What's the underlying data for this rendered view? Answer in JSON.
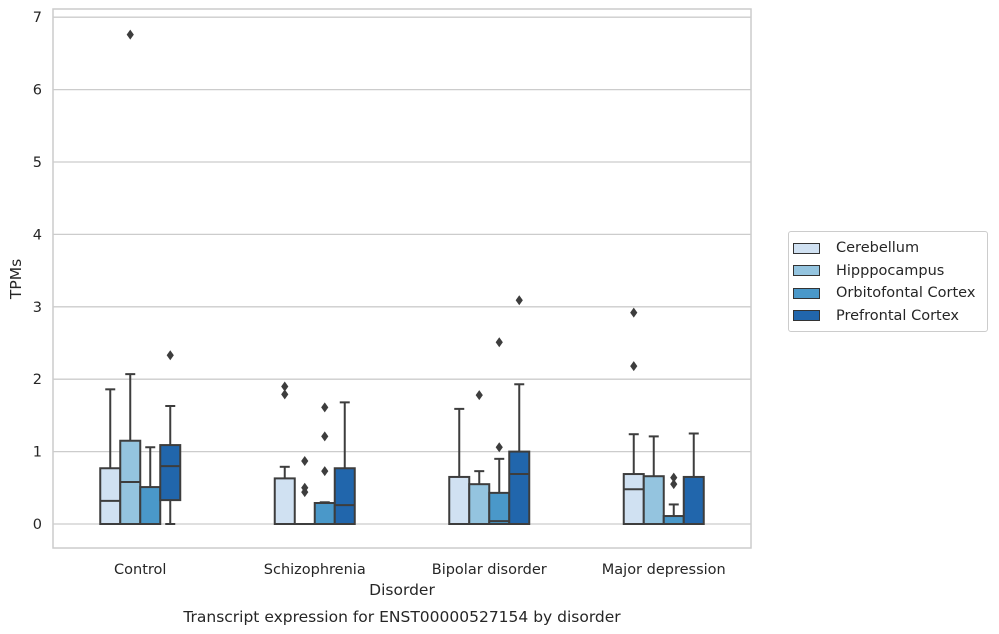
{
  "chart_data": {
    "type": "box",
    "title": "Transcript expression for ENST00000527154 by disorder",
    "xlabel": "Disorder",
    "ylabel": "TPMs",
    "ylim": [
      -0.32,
      7.12
    ],
    "yticks": [
      0,
      1,
      2,
      3,
      4,
      5,
      6,
      7
    ],
    "grid": "horizontal",
    "legend_position": "right",
    "categories": [
      "Control",
      "Schizophrenia",
      "Bipolar disorder",
      "Major depression"
    ],
    "series": [
      {
        "name": "Cerebellum",
        "color": "#d0e1f2",
        "boxes": [
          {
            "whislo": 0.0,
            "q1": 0.0,
            "med": 0.32,
            "q3": 0.77,
            "whishi": 1.86,
            "fliers": []
          },
          {
            "whislo": 0.0,
            "q1": 0.0,
            "med": 0.0,
            "q3": 0.63,
            "whishi": 0.79,
            "fliers": [
              1.79,
              1.9
            ]
          },
          {
            "whislo": 0.0,
            "q1": 0.0,
            "med": 0.0,
            "q3": 0.65,
            "whishi": 1.59,
            "fliers": []
          },
          {
            "whislo": 0.0,
            "q1": 0.0,
            "med": 0.48,
            "q3": 0.69,
            "whishi": 1.24,
            "fliers": [
              2.18,
              2.92
            ]
          }
        ]
      },
      {
        "name": "Hipppocampus",
        "color": "#94c4df",
        "boxes": [
          {
            "whislo": 0.0,
            "q1": 0.0,
            "med": 0.58,
            "q3": 1.15,
            "whishi": 2.07,
            "fliers": [
              6.76
            ]
          },
          {
            "whislo": 0.0,
            "q1": 0.0,
            "med": 0.0,
            "q3": 0.0,
            "whishi": 0.0,
            "fliers": [
              0.44,
              0.5,
              0.87
            ]
          },
          {
            "whislo": 0.0,
            "q1": 0.0,
            "med": 0.0,
            "q3": 0.55,
            "whishi": 0.73,
            "fliers": [
              1.78
            ]
          },
          {
            "whislo": 0.0,
            "q1": 0.0,
            "med": 0.0,
            "q3": 0.66,
            "whishi": 1.21,
            "fliers": []
          }
        ]
      },
      {
        "name": "Orbitofontal Cortex",
        "color": "#4a98c9",
        "boxes": [
          {
            "whislo": 0.0,
            "q1": 0.0,
            "med": 0.0,
            "q3": 0.51,
            "whishi": 1.06,
            "fliers": []
          },
          {
            "whislo": 0.0,
            "q1": 0.0,
            "med": 0.0,
            "q3": 0.29,
            "whishi": 0.3,
            "fliers": [
              0.73,
              1.21,
              1.61
            ]
          },
          {
            "whislo": 0.0,
            "q1": 0.0,
            "med": 0.04,
            "q3": 0.43,
            "whishi": 0.9,
            "fliers": [
              1.06,
              2.51
            ]
          },
          {
            "whislo": 0.0,
            "q1": 0.0,
            "med": 0.0,
            "q3": 0.11,
            "whishi": 0.27,
            "fliers": [
              0.55,
              0.64
            ]
          }
        ]
      },
      {
        "name": "Prefrontal Cortex",
        "color": "#2166ac",
        "boxes": [
          {
            "whislo": 0.0,
            "q1": 0.33,
            "med": 0.8,
            "q3": 1.09,
            "whishi": 1.63,
            "fliers": [
              2.33
            ]
          },
          {
            "whislo": 0.0,
            "q1": 0.0,
            "med": 0.26,
            "q3": 0.77,
            "whishi": 1.68,
            "fliers": []
          },
          {
            "whislo": 0.0,
            "q1": 0.0,
            "med": 0.69,
            "q3": 1.0,
            "whishi": 1.93,
            "fliers": [
              3.09
            ]
          },
          {
            "whislo": 0.0,
            "q1": 0.0,
            "med": 0.0,
            "q3": 0.65,
            "whishi": 1.25,
            "fliers": []
          }
        ]
      }
    ]
  }
}
